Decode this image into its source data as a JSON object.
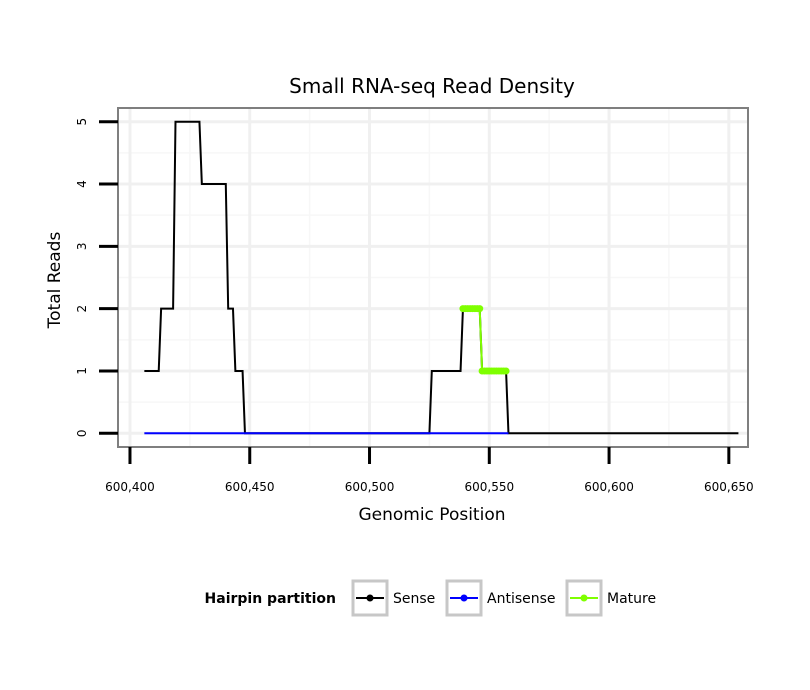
{
  "chart_data": {
    "type": "line",
    "title": "Small RNA-seq Read Density",
    "xlabel": "Genomic Position",
    "ylabel": "Total Reads",
    "xlim": [
      600395,
      600658
    ],
    "ylim": [
      -0.22,
      5.22
    ],
    "x_ticks": [
      600400,
      600450,
      600500,
      600550,
      600600,
      600650
    ],
    "x_tick_labels": [
      "600,400",
      "600,450",
      "600,500",
      "600,550",
      "600,600",
      "600,650"
    ],
    "y_ticks": [
      0,
      1,
      2,
      3,
      4,
      5
    ],
    "y_tick_labels": [
      "0",
      "1",
      "2",
      "3",
      "4",
      "5"
    ],
    "grid": true,
    "legend": {
      "title": "Hairpin partition",
      "position": "bottom",
      "entries": [
        {
          "name": "Sense",
          "color": "#000000"
        },
        {
          "name": "Antisense",
          "color": "#0000ff"
        },
        {
          "name": "Mature",
          "color": "#7fff00"
        }
      ]
    },
    "series": [
      {
        "name": "Sense",
        "color": "#000000",
        "x": [
          600406,
          600412,
          600413,
          600418,
          600419,
          600429,
          600430,
          600440,
          600441,
          600443,
          600444,
          600447,
          600448,
          600450,
          600525,
          600526,
          600538,
          600539,
          600546,
          600547,
          600557,
          600558,
          600654
        ],
        "y": [
          1,
          1,
          2,
          2,
          5,
          5,
          4,
          4,
          2,
          2,
          1,
          1,
          0,
          0,
          0,
          1,
          1,
          2,
          2,
          1,
          1,
          0,
          0
        ]
      },
      {
        "name": "Antisense",
        "color": "#0000ff",
        "x": [
          600406,
          600558
        ],
        "y": [
          0,
          0
        ]
      },
      {
        "name": "Mature",
        "color": "#7fff00",
        "x": [
          600539,
          600540,
          600541,
          600542,
          600543,
          600544,
          600545,
          600546,
          600547,
          600548,
          600549,
          600550,
          600551,
          600552,
          600553,
          600554,
          600555,
          600556,
          600557
        ],
        "y": [
          2,
          2,
          2,
          2,
          2,
          2,
          2,
          2,
          1,
          1,
          1,
          1,
          1,
          1,
          1,
          1,
          1,
          1,
          1
        ]
      }
    ]
  }
}
